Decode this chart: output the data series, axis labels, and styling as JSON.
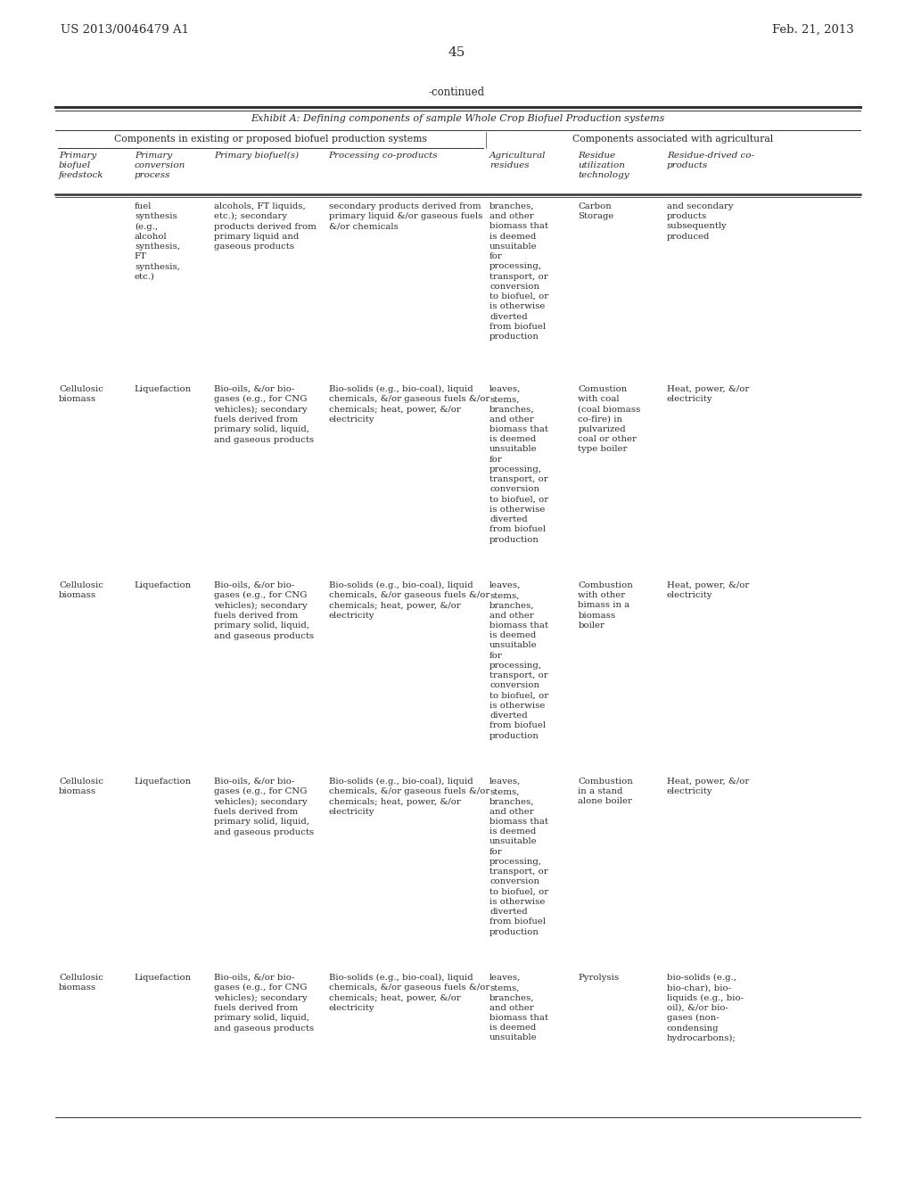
{
  "patent_left": "US 2013/0046479 A1",
  "patent_right": "Feb. 21, 2013",
  "page_number": "45",
  "continued_text": "-continued",
  "exhibit_title": "Exhibit A: Defining components of sample Whole Crop Biofuel Production systems",
  "col_header1": "Components in existing or proposed biofuel production systems",
  "col_header2": "Components associated with agricultural",
  "col_headers": [
    "Primary\nbiofuel\nfeedstock",
    "Primary\nconversion\nprocess",
    "Primary biofuel(s)",
    "Processing co-products",
    "Agricultural\nresidues",
    "Residue\nutilization\ntechnology",
    "Residue-drived co-\nproducts"
  ],
  "rows": [
    {
      "col0": "",
      "col1": "fuel\nsynthesis\n(e.g.,\nalcohol\nsynthesis,\nFT\nsynthesis,\netc.)",
      "col2": "alcohols, FT liquids,\netc.); secondary\nproducts derived from\nprimary liquid and\ngaseous products",
      "col3": "secondary products derived from\nprimary liquid &/or gaseous fuels\n&/or chemicals",
      "col4": "branches,\nand other\nbiomass that\nis deemed\nunsuitable\nfor\nprocessing,\ntransport, or\nconversion\nto biofuel, or\nis otherwise\ndiverted\nfrom biofuel\nproduction",
      "col5": "Carbon\nStorage",
      "col6": "and secondary\nproducts\nsubsequently\nproduced"
    },
    {
      "col0": "Cellulosic\nbiomass",
      "col1": "Liquefaction",
      "col2": "Bio-oils, &/or bio-\ngases (e.g., for CNG\nvehicles); secondary\nfuels derived from\nprimary solid, liquid,\nand gaseous products",
      "col3": "Bio-solids (e.g., bio-coal), liquid\nchemicals, &/or gaseous fuels &/or\nchemicals; heat, power, &/or\nelectricity",
      "col4": "leaves,\nstems,\nbranches,\nand other\nbiomass that\nis deemed\nunsuitable\nfor\nprocessing,\ntransport, or\nconversion\nto biofuel, or\nis otherwise\ndiverted\nfrom biofuel\nproduction",
      "col5": "Comustion\nwith coal\n(coal biomass\nco-fire) in\npulvarized\ncoal or other\ntype boiler",
      "col6": "Heat, power, &/or\nelectricity"
    },
    {
      "col0": "Cellulosic\nbiomass",
      "col1": "Liquefaction",
      "col2": "Bio-oils, &/or bio-\ngases (e.g., for CNG\nvehicles); secondary\nfuels derived from\nprimary solid, liquid,\nand gaseous products",
      "col3": "Bio-solids (e.g., bio-coal), liquid\nchemicals, &/or gaseous fuels &/or\nchemicals; heat, power, &/or\nelectricity",
      "col4": "leaves,\nstems,\nbranches,\nand other\nbiomass that\nis deemed\nunsuitable\nfor\nprocessing,\ntransport, or\nconversion\nto biofuel, or\nis otherwise\ndiverted\nfrom biofuel\nproduction",
      "col5": "Combustion\nwith other\nbimass in a\nbiomass\nboiler",
      "col6": "Heat, power, &/or\nelectricity"
    },
    {
      "col0": "Cellulosic\nbiomass",
      "col1": "Liquefaction",
      "col2": "Bio-oils, &/or bio-\ngases (e.g., for CNG\nvehicles); secondary\nfuels derived from\nprimary solid, liquid,\nand gaseous products",
      "col3": "Bio-solids (e.g., bio-coal), liquid\nchemicals, &/or gaseous fuels &/or\nchemicals; heat, power, &/or\nelectricity",
      "col4": "leaves,\nstems,\nbranches,\nand other\nbiomass that\nis deemed\nunsuitable\nfor\nprocessing,\ntransport, or\nconversion\nto biofuel, or\nis otherwise\ndiverted\nfrom biofuel\nproduction",
      "col5": "Combustion\nin a stand\nalone boiler",
      "col6": "Heat, power, &/or\nelectricity"
    },
    {
      "col0": "Cellulosic\nbiomass",
      "col1": "Liquefaction",
      "col2": "Bio-oils, &/or bio-\ngases (e.g., for CNG\nvehicles); secondary\nfuels derived from\nprimary solid, liquid,\nand gaseous products",
      "col3": "Bio-solids (e.g., bio-coal), liquid\nchemicals, &/or gaseous fuels &/or\nchemicals; heat, power, &/or\nelectricity",
      "col4": "leaves,\nstems,\nbranches,\nand other\nbiomass that\nis deemed\nunsuitable",
      "col5": "Pyrolysis",
      "col6": "bio-solids (e.g.,\nbio-char), bio-\nliquids (e.g., bio-\noil), &/or bio-\ngases (non-\ncondensing\nhydrocarbons);"
    }
  ],
  "bg_color": "#ffffff",
  "text_color": "#2a2a2a",
  "line_color": "#333333"
}
